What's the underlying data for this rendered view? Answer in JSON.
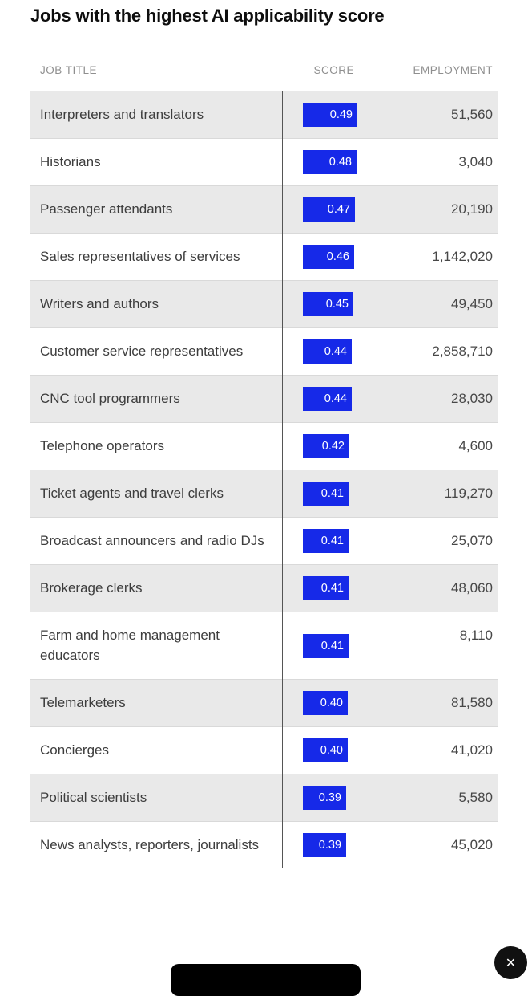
{
  "chart_data": {
    "type": "bar",
    "title": "Jobs with the highest AI applicability score",
    "columns": [
      "JOB TITLE",
      "SCORE",
      "EMPLOYMENT"
    ],
    "categories": [
      "Interpreters and translators",
      "Historians",
      "Passenger attendants",
      "Sales representatives of services",
      "Writers and authors",
      "Customer service representatives",
      "CNC tool programmers",
      "Telephone operators",
      "Ticket agents and travel clerks",
      "Broadcast announcers and radio DJs",
      "Brokerage clerks",
      "Farm and home management educators",
      "Telemarketers",
      "Concierges",
      "Political scientists",
      "News analysts, reporters, journalists"
    ],
    "values": [
      0.49,
      0.48,
      0.47,
      0.46,
      0.45,
      0.44,
      0.44,
      0.42,
      0.41,
      0.41,
      0.41,
      0.41,
      0.4,
      0.4,
      0.39,
      0.39
    ],
    "value_labels": [
      "0.49",
      "0.48",
      "0.47",
      "0.46",
      "0.45",
      "0.44",
      "0.44",
      "0.42",
      "0.41",
      "0.41",
      "0.41",
      "0.41",
      "0.40",
      "0.40",
      "0.39",
      "0.39"
    ],
    "employment": [
      "51,560",
      "3,040",
      "20,190",
      "1,142,020",
      "49,450",
      "2,858,710",
      "28,030",
      "4,600",
      "119,270",
      "25,070",
      "48,060",
      "8,110",
      "81,580",
      "41,020",
      "5,580",
      "45,020"
    ],
    "xlim": [
      0,
      0.49
    ],
    "bar_color": "#1629e8",
    "legend": "none",
    "grid": "off"
  },
  "colors": {
    "bar_blue": "#1629e8",
    "row_alt_gray": "#e9e9e9",
    "row_white": "#ffffff",
    "divider_dark": "#555555",
    "row_separator": "#d9d9d9",
    "header_gray": "#8f8f8f",
    "body_text": "#3d3d3d",
    "toast_black": "#000000"
  },
  "overlay": {
    "close_label": "✕"
  }
}
